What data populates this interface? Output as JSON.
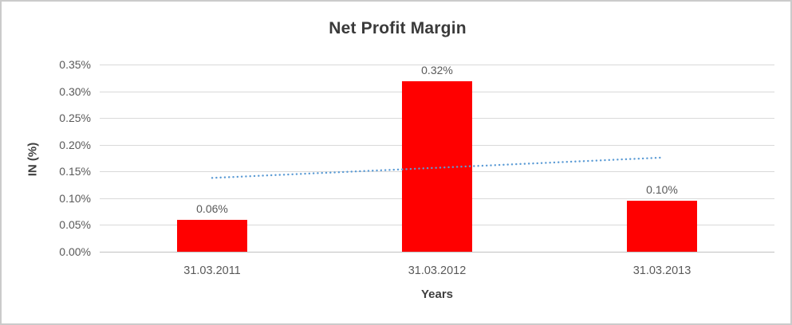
{
  "chart_data": {
    "type": "bar",
    "title": "Net Profit Margin",
    "xlabel": "Years",
    "ylabel": "IN (%)",
    "categories": [
      "31.03.2011",
      "31.03.2012",
      "31.03.2013"
    ],
    "values": [
      0.059,
      0.319,
      0.096
    ],
    "data_labels": [
      "0.06%",
      "0.32%",
      "0.10%"
    ],
    "yticks": [
      "0.35%",
      "0.30%",
      "0.25%",
      "0.20%",
      "0.15%",
      "0.10%",
      "0.05%",
      "0.00%"
    ],
    "ylim": [
      0,
      0.35
    ],
    "grid": true,
    "legend": "none",
    "bar_color": "#FF0000",
    "trendline": {
      "type": "linear",
      "style": "dotted",
      "color": "#5B9BD5",
      "start_value": 0.138,
      "end_value": 0.176
    }
  },
  "colors": {
    "background": "#FFFFFF",
    "border": "#CBCBCB",
    "gridline": "#D9D9D9",
    "axis_line": "#C1C1C1",
    "title_text": "#3A3A3A",
    "tick_text": "#595959"
  }
}
